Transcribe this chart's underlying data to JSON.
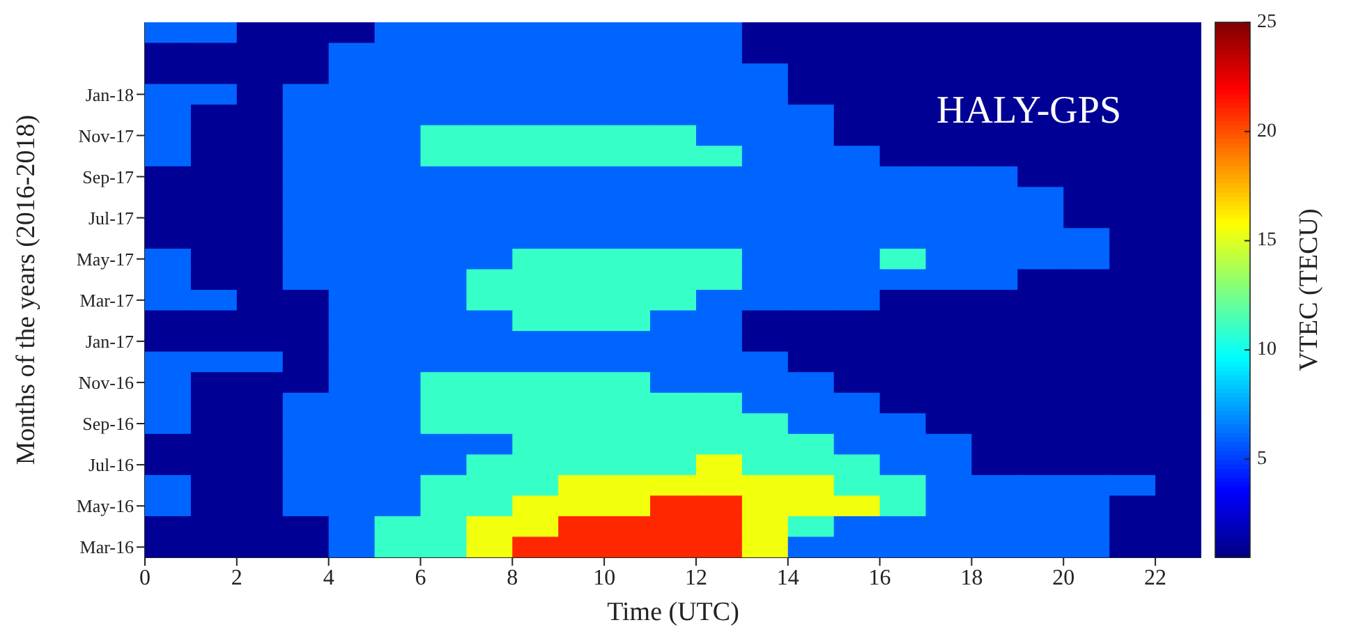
{
  "chart_data": {
    "type": "heatmap",
    "xlabel": "Time (UTC)",
    "ylabel": "Months of the years (2016-2018)",
    "clabel": "VTEC (TECU)",
    "annotations": [
      "HALY-GPS"
    ],
    "x": [
      0.5,
      1.5,
      2.5,
      3.5,
      4.5,
      5.5,
      6.5,
      7.5,
      8.5,
      9.5,
      10.5,
      11.5,
      12.5,
      13.5,
      14.5,
      15.5,
      16.5,
      17.5,
      18.5,
      19.5,
      20.5,
      21.5,
      22.5
    ],
    "xlim": [
      0,
      23
    ],
    "xticks": [
      0,
      2,
      4,
      6,
      8,
      10,
      12,
      14,
      16,
      18,
      20,
      22
    ],
    "y_categories": [
      null,
      null,
      null,
      "Jan-18",
      null,
      "Nov-17",
      null,
      "Sep-17",
      null,
      "Jul-17",
      null,
      "May-17",
      null,
      "Mar-17",
      null,
      "Jan-17",
      null,
      "Nov-16",
      null,
      "Sep-16",
      null,
      "Jul-16",
      null,
      "May-16",
      null,
      "Mar-16"
    ],
    "clim": [
      0.5,
      25
    ],
    "cticks": [
      5,
      10,
      15,
      20,
      25
    ],
    "cells": [
      [
        6,
        6,
        1,
        1,
        1,
        6,
        6,
        6,
        6,
        6,
        6,
        6,
        6,
        1,
        1,
        1,
        1,
        1,
        1,
        1,
        1,
        1,
        1
      ],
      [
        1,
        1,
        1,
        1,
        6,
        6,
        6,
        6,
        6,
        6,
        6,
        6,
        6,
        1,
        1,
        1,
        1,
        1,
        1,
        1,
        1,
        1,
        1
      ],
      [
        1,
        1,
        1,
        1,
        6,
        6,
        6,
        6,
        6,
        6,
        6,
        6,
        6,
        6,
        1,
        1,
        1,
        1,
        1,
        1,
        1,
        1,
        1
      ],
      [
        6,
        6,
        1,
        6,
        6,
        6,
        6,
        6,
        6,
        6,
        6,
        6,
        6,
        6,
        1,
        1,
        1,
        1,
        1,
        1,
        1,
        1,
        1
      ],
      [
        6,
        1,
        1,
        6,
        6,
        6,
        6,
        6,
        6,
        6,
        6,
        6,
        6,
        6,
        6,
        1,
        1,
        1,
        1,
        1,
        1,
        1,
        1
      ],
      [
        6,
        1,
        1,
        6,
        6,
        6,
        11,
        11,
        11,
        11,
        11,
        11,
        6,
        6,
        6,
        1,
        1,
        1,
        1,
        1,
        1,
        1,
        1
      ],
      [
        6,
        1,
        1,
        6,
        6,
        6,
        11,
        11,
        11,
        11,
        11,
        11,
        11,
        6,
        6,
        6,
        1,
        1,
        1,
        1,
        1,
        1,
        1
      ],
      [
        1,
        1,
        1,
        6,
        6,
        6,
        6,
        6,
        6,
        6,
        6,
        6,
        6,
        6,
        6,
        6,
        6,
        6,
        6,
        1,
        1,
        1,
        1
      ],
      [
        1,
        1,
        1,
        6,
        6,
        6,
        6,
        6,
        6,
        6,
        6,
        6,
        6,
        6,
        6,
        6,
        6,
        6,
        6,
        6,
        1,
        1,
        1
      ],
      [
        1,
        1,
        1,
        6,
        6,
        6,
        6,
        6,
        6,
        6,
        6,
        6,
        6,
        6,
        6,
        6,
        6,
        6,
        6,
        6,
        1,
        1,
        1
      ],
      [
        1,
        1,
        1,
        6,
        6,
        6,
        6,
        6,
        6,
        6,
        6,
        6,
        6,
        6,
        6,
        6,
        6,
        6,
        6,
        6,
        6,
        1,
        1
      ],
      [
        6,
        1,
        1,
        6,
        6,
        6,
        6,
        6,
        11,
        11,
        11,
        11,
        11,
        6,
        6,
        6,
        11,
        6,
        6,
        6,
        6,
        1,
        1
      ],
      [
        6,
        1,
        1,
        6,
        6,
        6,
        6,
        11,
        11,
        11,
        11,
        11,
        11,
        6,
        6,
        6,
        6,
        6,
        6,
        1,
        1,
        1,
        1
      ],
      [
        6,
        6,
        1,
        1,
        6,
        6,
        6,
        11,
        11,
        11,
        11,
        11,
        6,
        6,
        6,
        6,
        1,
        1,
        1,
        1,
        1,
        1,
        1
      ],
      [
        1,
        1,
        1,
        1,
        6,
        6,
        6,
        6,
        11,
        11,
        11,
        6,
        6,
        1,
        1,
        1,
        1,
        1,
        1,
        1,
        1,
        1,
        1
      ],
      [
        1,
        1,
        1,
        1,
        6,
        6,
        6,
        6,
        6,
        6,
        6,
        6,
        6,
        1,
        1,
        1,
        1,
        1,
        1,
        1,
        1,
        1,
        1
      ],
      [
        6,
        6,
        6,
        1,
        6,
        6,
        6,
        6,
        6,
        6,
        6,
        6,
        6,
        6,
        1,
        1,
        1,
        1,
        1,
        1,
        1,
        1,
        1
      ],
      [
        6,
        1,
        1,
        1,
        6,
        6,
        11,
        11,
        11,
        11,
        11,
        6,
        6,
        6,
        6,
        1,
        1,
        1,
        1,
        1,
        1,
        1,
        1
      ],
      [
        6,
        1,
        1,
        6,
        6,
        6,
        11,
        11,
        11,
        11,
        11,
        11,
        11,
        6,
        6,
        6,
        1,
        1,
        1,
        1,
        1,
        1,
        1
      ],
      [
        6,
        1,
        1,
        6,
        6,
        6,
        11,
        11,
        11,
        11,
        11,
        11,
        11,
        11,
        6,
        6,
        6,
        1,
        1,
        1,
        1,
        1,
        1
      ],
      [
        1,
        1,
        1,
        6,
        6,
        6,
        6,
        6,
        11,
        11,
        11,
        11,
        11,
        11,
        11,
        6,
        6,
        6,
        1,
        1,
        1,
        1,
        1
      ],
      [
        1,
        1,
        1,
        6,
        6,
        6,
        6,
        11,
        11,
        11,
        11,
        11,
        15.5,
        11,
        11,
        11,
        6,
        6,
        1,
        1,
        1,
        1,
        1
      ],
      [
        6,
        1,
        1,
        6,
        6,
        6,
        11,
        11,
        11,
        15.5,
        15.5,
        15.5,
        15.5,
        15.5,
        15.5,
        11,
        11,
        6,
        6,
        6,
        6,
        6,
        1
      ],
      [
        6,
        1,
        1,
        6,
        6,
        6,
        11,
        11,
        15.5,
        15.5,
        15.5,
        21,
        21,
        15.5,
        15.5,
        15.5,
        11,
        6,
        6,
        6,
        6,
        1,
        1
      ],
      [
        1,
        1,
        1,
        1,
        6,
        11,
        11,
        15.5,
        15.5,
        21,
        21,
        21,
        21,
        15.5,
        11,
        6,
        6,
        6,
        6,
        6,
        6,
        1,
        1
      ],
      [
        1,
        1,
        1,
        1,
        6,
        11,
        11,
        15.5,
        21,
        21,
        21,
        21,
        21,
        15.5,
        6,
        6,
        6,
        6,
        6,
        6,
        6,
        1,
        1
      ]
    ]
  }
}
